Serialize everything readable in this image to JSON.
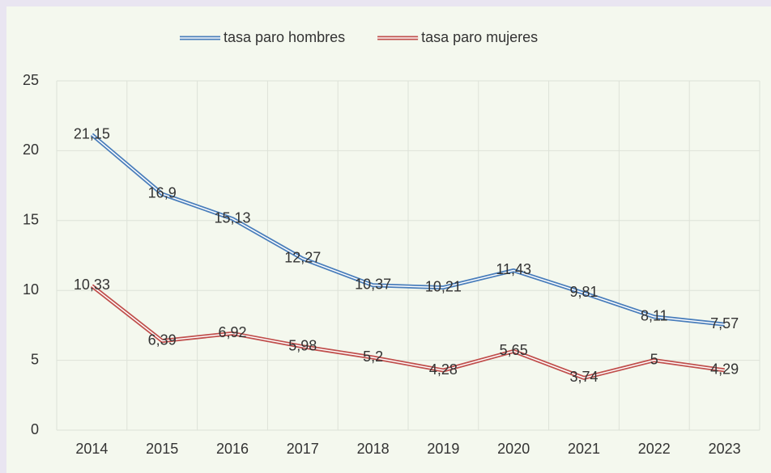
{
  "chart_data": {
    "type": "line",
    "categories": [
      "2014",
      "2015",
      "2016",
      "2017",
      "2018",
      "2019",
      "2020",
      "2021",
      "2022",
      "2023"
    ],
    "series": [
      {
        "name": "tasa paro hombres",
        "color": "#4a7ebb",
        "values": [
          21.15,
          16.9,
          15.13,
          12.27,
          10.37,
          10.21,
          11.43,
          9.81,
          8.11,
          7.57
        ],
        "value_labels": [
          "21,15",
          "16,9",
          "15,13",
          "12,27",
          "10,37",
          "10,21",
          "11,43",
          "9,81",
          "8,11",
          "7,57"
        ]
      },
      {
        "name": "tasa paro mujeres",
        "color": "#c0504d",
        "values": [
          10.33,
          6.39,
          6.92,
          5.98,
          5.2,
          4.28,
          5.65,
          3.74,
          5,
          4.29
        ],
        "value_labels": [
          "10,33",
          "6,39",
          "6,92",
          "5,98",
          "5,2",
          "4,28",
          "5,65",
          "3,74",
          "5",
          "4,29"
        ]
      }
    ],
    "ylim": [
      0,
      25
    ],
    "yticks": [
      0,
      5,
      10,
      15,
      20,
      25
    ],
    "grid": true,
    "legend": "top"
  }
}
